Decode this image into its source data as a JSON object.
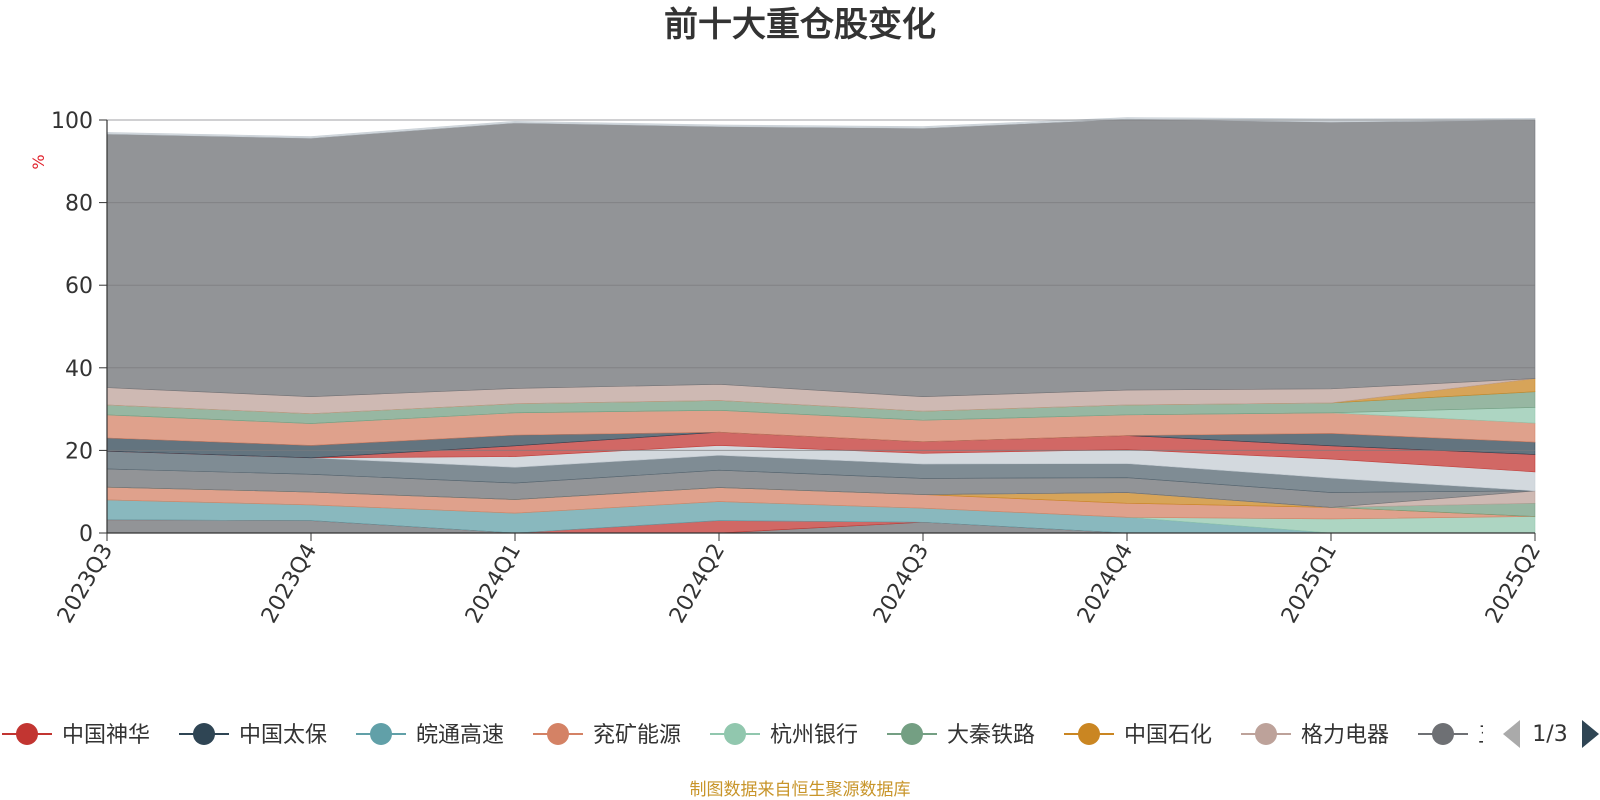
{
  "chart_data": {
    "type": "area",
    "title": "前十大重仓股变化",
    "ylabel": "%",
    "ylim": [
      0,
      100
    ],
    "y_ticks": [
      "0",
      "20",
      "40",
      "60",
      "80",
      "100"
    ],
    "stacked": true,
    "grid": true,
    "categories": [
      "2023Q3",
      "2023Q4",
      "2024Q1",
      "2024Q2",
      "2024Q3",
      "2024Q4",
      "2025Q1",
      "2025Q2"
    ],
    "series": [
      {
        "name": "",
        "color": "#6e7074",
        "values": [
          3.2,
          3.0,
          0,
          0,
          2.6,
          0,
          0,
          0
        ]
      },
      {
        "name": "中国神华",
        "color": "#c23531",
        "values": [
          0,
          0,
          0,
          3.0,
          0,
          0,
          0,
          0
        ]
      },
      {
        "name": "皖通高速",
        "color": "#61a0a8",
        "values": [
          4.8,
          3.8,
          4.8,
          4.6,
          3.4,
          3.8,
          0,
          0
        ]
      },
      {
        "name": "杭州银行",
        "color": "#91c7ae",
        "values": [
          0,
          0,
          0,
          0,
          0,
          0,
          3.4,
          4.0
        ]
      },
      {
        "name": "",
        "color": "#d48265",
        "values": [
          3.1,
          3.1,
          3.3,
          3.4,
          3.3,
          3.4,
          2.8,
          0
        ]
      },
      {
        "name": "中国石化",
        "color": "#ca8622",
        "values": [
          0,
          0,
          0,
          0,
          0,
          2.6,
          0,
          0
        ]
      },
      {
        "name": "大秦铁路",
        "color": "#749f83",
        "values": [
          0,
          0,
          0,
          0,
          0,
          0,
          0,
          3.2
        ]
      },
      {
        "name": "格力电器",
        "color": "#bda29a",
        "values": [
          0,
          0,
          0,
          0,
          0,
          0,
          0,
          3.0
        ]
      },
      {
        "name": "",
        "color": "#6e7074",
        "values": [
          4.4,
          4.3,
          4.0,
          4.2,
          3.9,
          3.6,
          3.6,
          0
        ]
      },
      {
        "name": "",
        "color": "#546570",
        "values": [
          4.3,
          4.0,
          3.8,
          3.6,
          3.5,
          3.4,
          3.5,
          0
        ]
      },
      {
        "name": "",
        "color": "#c4ccd3",
        "values": [
          0,
          0,
          2.6,
          2.4,
          2.6,
          3.4,
          4.6,
          4.6
        ]
      },
      {
        "name": "",
        "color": "#c23531",
        "values": [
          0,
          0,
          2.6,
          3.2,
          2.8,
          3.4,
          3.2,
          4.2
        ]
      },
      {
        "name": "中国太保",
        "color": "#2f4554",
        "values": [
          3.2,
          3.0,
          2.6,
          0,
          0,
          0,
          3.0,
          3.0
        ]
      },
      {
        "name": "兖矿能源",
        "color": "#d48265",
        "values": [
          5.6,
          5.3,
          5.4,
          5.3,
          5.2,
          5.0,
          5.0,
          4.6
        ]
      },
      {
        "name": "",
        "color": "#91c7ae",
        "values": [
          0,
          0,
          0,
          0,
          0,
          0,
          0,
          3.8
        ]
      },
      {
        "name": "",
        "color": "#749f83",
        "values": [
          2.4,
          2.4,
          2.2,
          2.4,
          2.2,
          2.4,
          2.4,
          3.8
        ]
      },
      {
        "name": "",
        "color": "#ca8622",
        "values": [
          0,
          0,
          0,
          0,
          0,
          0,
          0,
          3.2
        ]
      },
      {
        "name": "",
        "color": "#bda29a",
        "values": [
          4.2,
          4.1,
          3.7,
          3.9,
          3.5,
          3.6,
          3.4,
          0
        ]
      },
      {
        "name": "",
        "color": "#6e7074",
        "values": [
          61.4,
          62.6,
          64.3,
          62.4,
          65.0,
          65.6,
          64.6,
          62.6
        ]
      },
      {
        "name": "",
        "color": "#c4ccd3",
        "values": [
          0.4,
          0.4,
          0.4,
          0.4,
          0.4,
          0.4,
          0.8,
          0.4
        ]
      }
    ],
    "legend": {
      "position": "bottom",
      "page": "1/3",
      "items": [
        {
          "name": "中国神华",
          "color": "#c23531"
        },
        {
          "name": "中国太保",
          "color": "#2f4554"
        },
        {
          "name": "皖通高速",
          "color": "#61a0a8"
        },
        {
          "name": "兖矿能源",
          "color": "#d48265"
        },
        {
          "name": "杭州银行",
          "color": "#91c7ae"
        },
        {
          "name": "大秦铁路",
          "color": "#749f83"
        },
        {
          "name": "中国石化",
          "color": "#ca8622"
        },
        {
          "name": "格力电器",
          "color": "#bda29a"
        },
        {
          "name": "五",
          "color": "#6e7074"
        }
      ]
    },
    "source": "制图数据来自恒生聚源数据库"
  }
}
